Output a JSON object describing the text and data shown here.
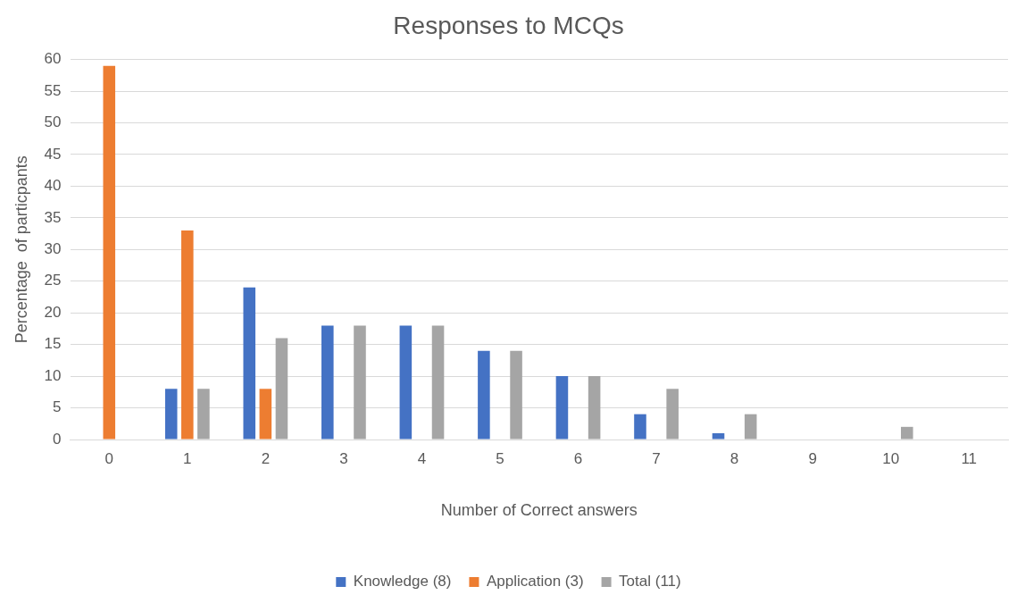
{
  "chart_data": {
    "type": "bar",
    "title": "Responses to MCQs",
    "xlabel": "Number of Correct answers",
    "ylabel": "Percentage  of particpants",
    "categories": [
      "0",
      "1",
      "2",
      "3",
      "4",
      "5",
      "6",
      "7",
      "8",
      "9",
      "10",
      "11"
    ],
    "series": [
      {
        "name": "Knowledge (8)",
        "color": "#4472c4",
        "values": [
          0,
          8,
          24,
          18,
          18,
          14,
          10,
          4,
          1,
          0,
          0,
          0
        ]
      },
      {
        "name": "Application (3)",
        "color": "#ed7d31",
        "values": [
          59,
          33,
          8,
          0,
          0,
          0,
          0,
          0,
          0,
          0,
          0,
          0
        ]
      },
      {
        "name": "Total (11)",
        "color": "#a5a5a5",
        "values": [
          0,
          8,
          16,
          18,
          18,
          14,
          10,
          8,
          4,
          0,
          2,
          0
        ]
      }
    ],
    "ylim": [
      0,
      60
    ],
    "yticks": [
      0,
      5,
      10,
      15,
      20,
      25,
      30,
      35,
      40,
      45,
      50,
      55,
      60
    ],
    "grid": "y",
    "legend": "bottom"
  }
}
